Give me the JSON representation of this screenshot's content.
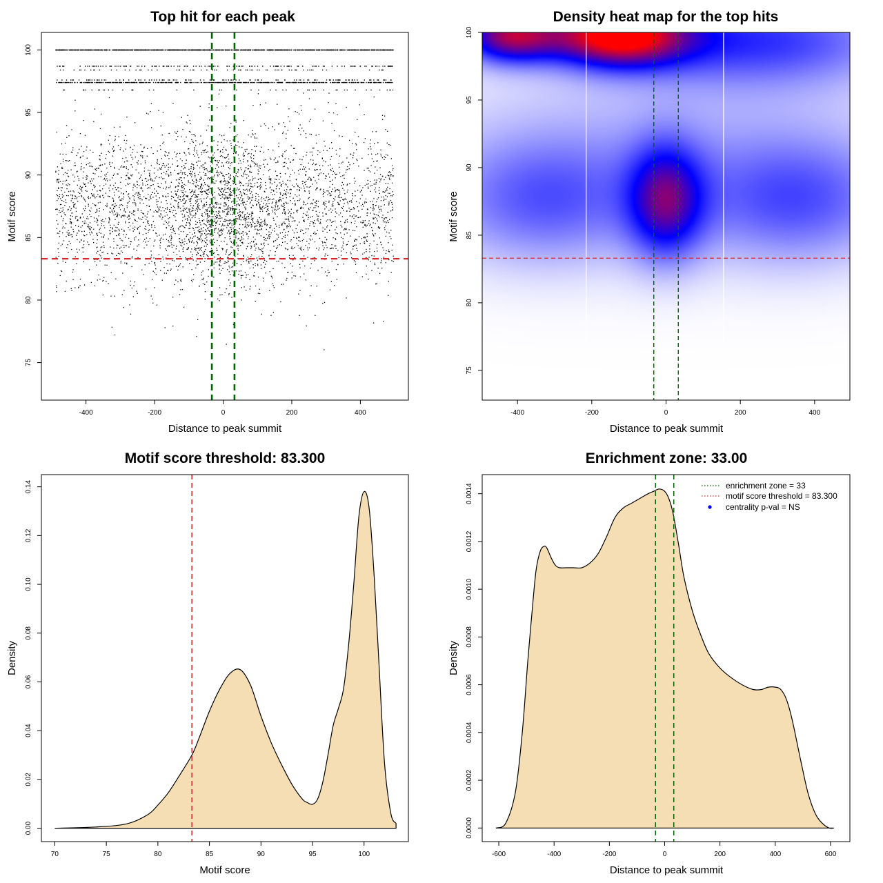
{
  "chart_data": [
    {
      "type": "scatter",
      "title": "Top hit for each peak",
      "xlabel": "Distance to peak summit",
      "ylabel": "Motif score",
      "xlim": [
        -530,
        540
      ],
      "ylim": [
        72.0,
        101.4
      ],
      "xticks": [
        -400,
        -200,
        0,
        200,
        400
      ],
      "yticks": [
        75,
        80,
        85,
        90,
        95,
        100
      ],
      "x_range": [
        -490,
        495
      ],
      "score_bands": [
        100.0,
        98.7,
        98.4,
        97.6,
        97.4,
        96.8
      ],
      "central_cluster": {
        "x_mean": 0,
        "x_sd": 95,
        "y_mean": 87.5,
        "y_sd": 3.2
      },
      "enrichment_zone": [
        -33,
        33
      ],
      "score_threshold": 83.3,
      "zone_color": "#006400",
      "threshold_color": "#dc2828"
    },
    {
      "type": "heatmap",
      "title": "Density heat map for the top hits",
      "xlabel": "Distance to peak summit",
      "ylabel": "Motif score",
      "xlim": [
        -495,
        495
      ],
      "ylim": [
        72.8,
        100.0
      ],
      "xticks": [
        -400,
        -200,
        0,
        200,
        400
      ],
      "yticks": [
        75,
        80,
        85,
        90,
        95,
        100
      ],
      "density_blobs": [
        {
          "x": -130,
          "y": 99.8,
          "sx": 130,
          "sy": 1.6,
          "w": 1.0
        },
        {
          "x": -420,
          "y": 99.8,
          "sx": 90,
          "sy": 1.4,
          "w": 0.75
        },
        {
          "x": 250,
          "y": 99.5,
          "sx": 260,
          "sy": 2.4,
          "w": 0.38
        },
        {
          "x": 0,
          "y": 87.5,
          "sx": 70,
          "sy": 2.9,
          "w": 0.55
        },
        {
          "x": -330,
          "y": 87.5,
          "sx": 190,
          "sy": 3.2,
          "w": 0.26
        },
        {
          "x": 350,
          "y": 87.5,
          "sx": 190,
          "sy": 3.2,
          "w": 0.28
        },
        {
          "x": 0,
          "y": 91.0,
          "sx": 500,
          "sy": 5.0,
          "w": 0.14
        }
      ],
      "bin_edges": [
        -215,
        155
      ],
      "enrichment_zone": [
        -33,
        33
      ],
      "score_threshold": 83.3,
      "zone_color": "#006400",
      "threshold_color": "#dc2828"
    },
    {
      "type": "area",
      "title": "Motif score threshold: 83.300",
      "xlabel": "Motif score",
      "ylabel": "Density",
      "xlim": [
        68.7,
        104.3
      ],
      "ylim": [
        -0.0055,
        0.145
      ],
      "xticks": [
        70,
        75,
        80,
        85,
        90,
        95,
        100
      ],
      "yticks": [
        0.0,
        0.02,
        0.04,
        0.06,
        0.08,
        0.1,
        0.12,
        0.14
      ],
      "ytick_labels": [
        "0.00",
        "0.02",
        "0.04",
        "0.06",
        "0.08",
        "0.10",
        "0.12",
        "0.14"
      ],
      "x": [
        70,
        74,
        77,
        79,
        80,
        81,
        82,
        83.3,
        84,
        85,
        86,
        87,
        88,
        89,
        90,
        91,
        92,
        93,
        94,
        94.5,
        95,
        95.5,
        96,
        96.5,
        97,
        97.5,
        98,
        98.5,
        99,
        99.5,
        100,
        100.5,
        101,
        101.5,
        102,
        102.6,
        103.1
      ],
      "y": [
        0.0,
        0.0005,
        0.0018,
        0.0055,
        0.0095,
        0.0145,
        0.021,
        0.03,
        0.037,
        0.048,
        0.057,
        0.0635,
        0.065,
        0.0585,
        0.046,
        0.035,
        0.026,
        0.018,
        0.012,
        0.0105,
        0.0098,
        0.012,
        0.019,
        0.03,
        0.042,
        0.049,
        0.057,
        0.075,
        0.1,
        0.128,
        0.138,
        0.131,
        0.102,
        0.063,
        0.026,
        0.006,
        0.002
      ],
      "score_threshold": 83.3,
      "fill_color": "#f5deb3",
      "threshold_color": "#dc2828"
    },
    {
      "type": "area",
      "title": "Enrichment zone: 33.00",
      "xlabel": "Distance to peak summit",
      "ylabel": "Density",
      "xlim": [
        -660,
        670
      ],
      "ylim": [
        -5.7e-05,
        0.00148
      ],
      "xticks": [
        -600,
        -400,
        -200,
        0,
        200,
        400,
        600
      ],
      "yticks": [
        0.0,
        0.0002,
        0.0004,
        0.0006,
        0.0008,
        0.001,
        0.0012,
        0.0014
      ],
      "ytick_labels": [
        "0.0000",
        "0.0002",
        "0.0004",
        "0.0006",
        "0.0008",
        "0.0010",
        "0.0012",
        "0.0014"
      ],
      "x": [
        -610,
        -575,
        -540,
        -515,
        -495,
        -480,
        -465,
        -450,
        -435,
        -425,
        -410,
        -395,
        -380,
        -355,
        -330,
        -300,
        -270,
        -240,
        -210,
        -180,
        -150,
        -120,
        -90,
        -60,
        -40,
        -20,
        0,
        15,
        30,
        50,
        70,
        100,
        130,
        160,
        200,
        240,
        280,
        320,
        350,
        375,
        400,
        420,
        440,
        460,
        480,
        500,
        520,
        545,
        570,
        595,
        612
      ],
      "y": [
        0.0,
        2e-05,
        0.00015,
        0.0004,
        0.0007,
        0.0009,
        0.00108,
        0.00116,
        0.00118,
        0.00117,
        0.00113,
        0.0011,
        0.00109,
        0.00109,
        0.00109,
        0.00109,
        0.00111,
        0.00115,
        0.00122,
        0.0013,
        0.00134,
        0.00136,
        0.00138,
        0.0014,
        0.00141,
        0.00142,
        0.00141,
        0.00138,
        0.00132,
        0.00119,
        0.00105,
        0.00091,
        0.00081,
        0.00073,
        0.00067,
        0.00063,
        0.0006,
        0.00058,
        0.00058,
        0.00059,
        0.00059,
        0.00058,
        0.00054,
        0.00046,
        0.00035,
        0.00024,
        0.00014,
        6e-05,
        2e-05,
        0.0,
        0.0
      ],
      "enrichment_zone": [
        -33,
        33
      ],
      "fill_color": "#f5deb3",
      "zone_color": "#006400",
      "threshold_color": "#dc2828",
      "legend_position": "top-right",
      "legend": [
        {
          "label": "enrichment zone = 33",
          "type": "dotted",
          "color": "#006400"
        },
        {
          "label": "motif score threshold = 83.300",
          "type": "dotted",
          "color": "#dc2828"
        },
        {
          "label": "centrality p-val = NS",
          "type": "point",
          "color": "#0000ff"
        }
      ]
    }
  ]
}
